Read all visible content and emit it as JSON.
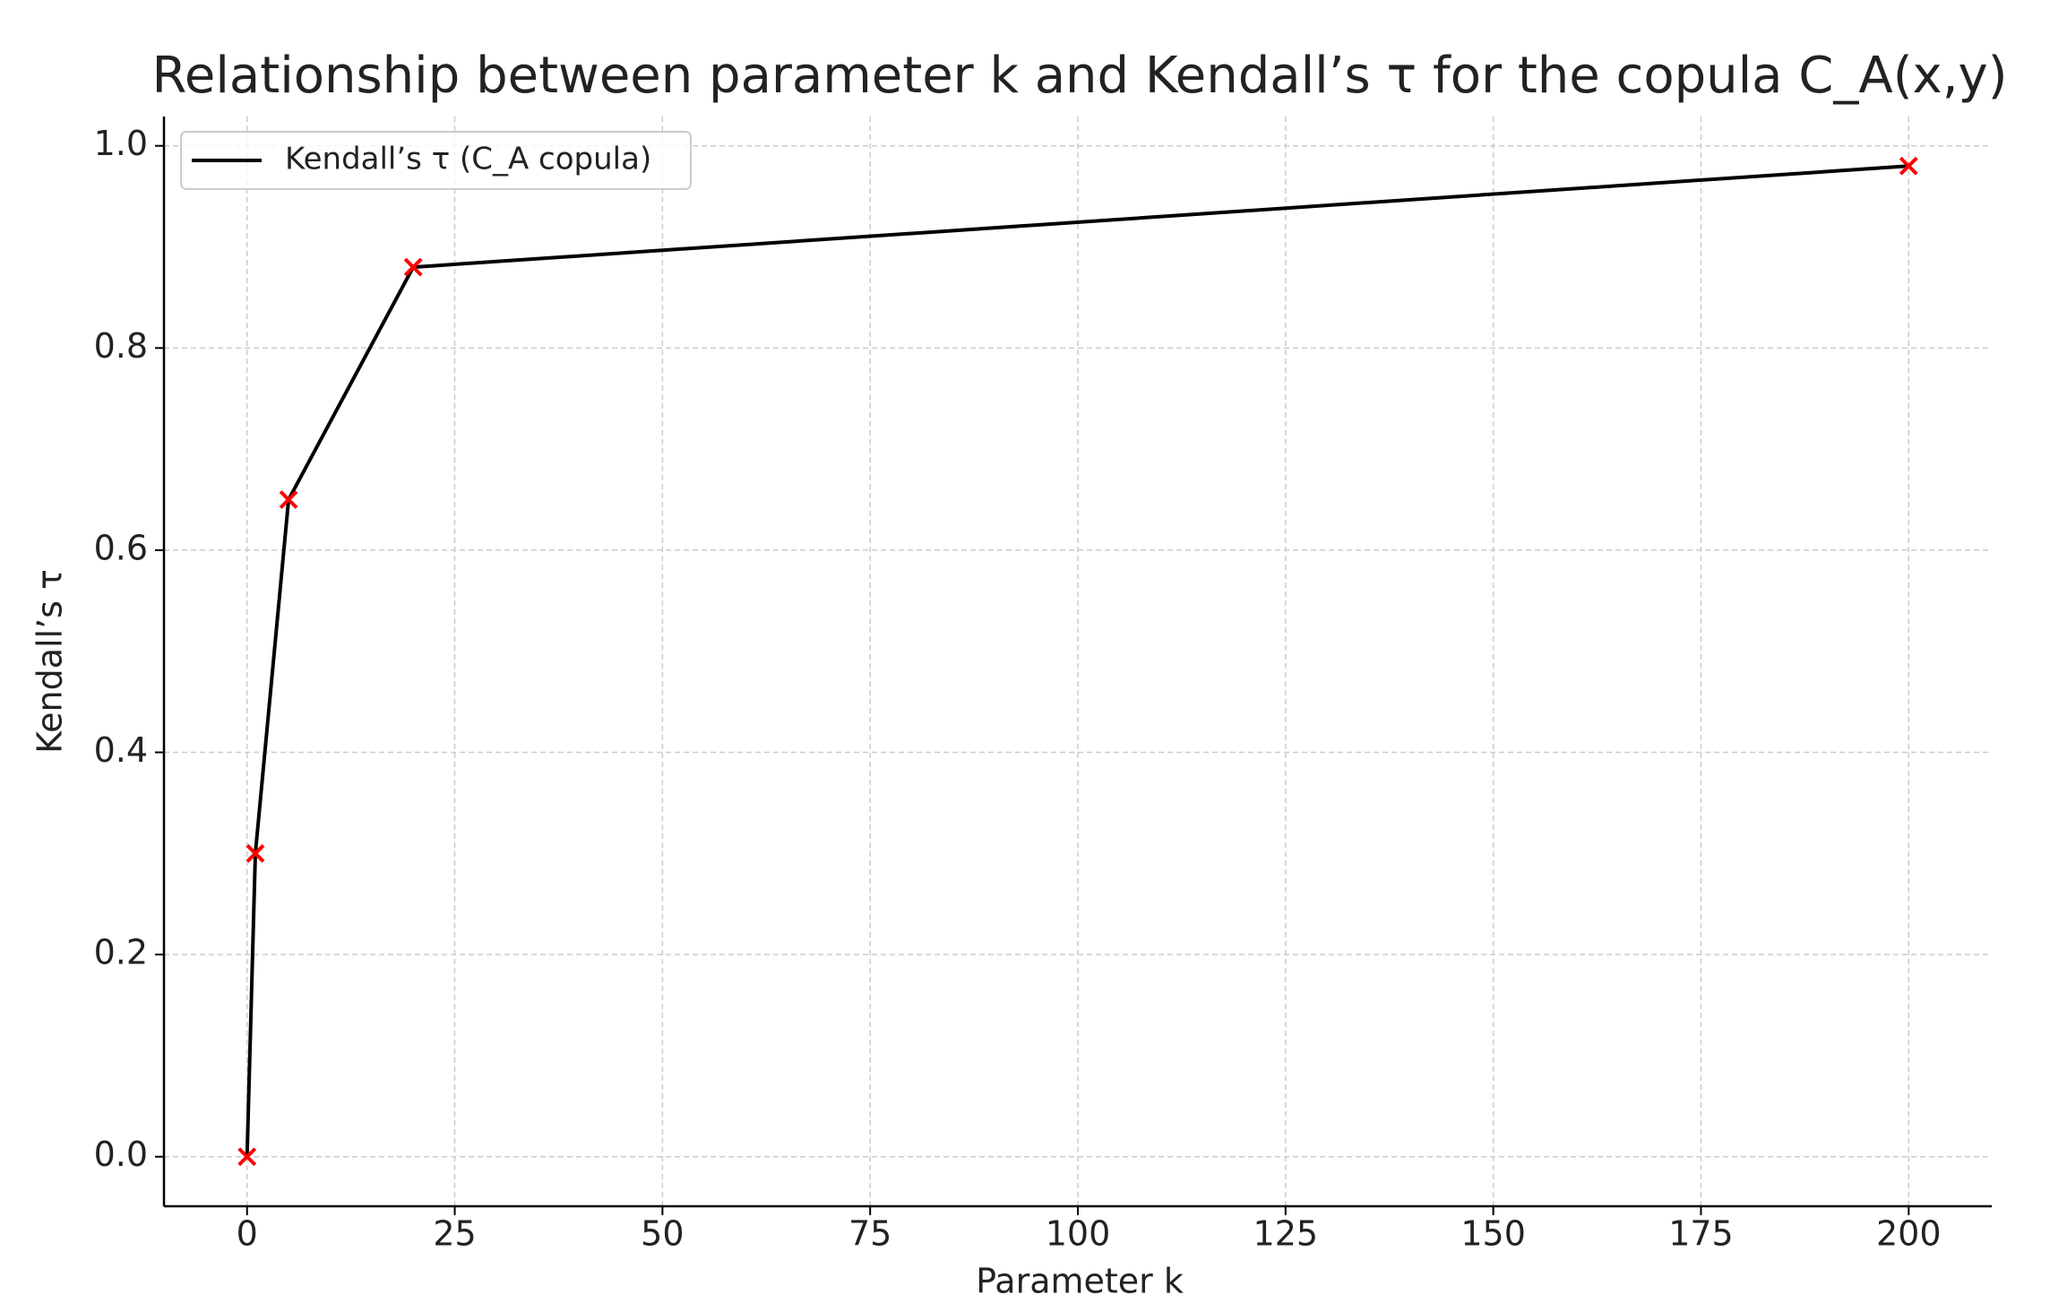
{
  "chart_data": {
    "type": "line",
    "title": "Relationship between parameter k and Kendall’s τ for the copula C_A(x,y)",
    "x_label": "Parameter k",
    "y_label": "Kendall’s τ",
    "x": [
      0,
      1,
      5,
      20,
      200
    ],
    "series": [
      {
        "name": "Kendall’s τ (C_A copula)",
        "color": "#000000",
        "marker": "x",
        "marker_color": "#ff0000",
        "values": [
          0,
          0.3,
          0.65,
          0.88,
          0.98
        ]
      }
    ],
    "xlim": [
      -10,
      210
    ],
    "xticks": [
      0,
      25,
      50,
      75,
      100,
      125,
      150,
      175,
      200
    ],
    "ylim": [
      -0.049,
      1.029
    ],
    "yticks": [
      {
        "value": 0,
        "label": "0.0"
      },
      0.2,
      0.4,
      0.6,
      0.8,
      {
        "value": 1,
        "label": "1.0"
      }
    ],
    "grid": true,
    "legend": "upper left"
  }
}
